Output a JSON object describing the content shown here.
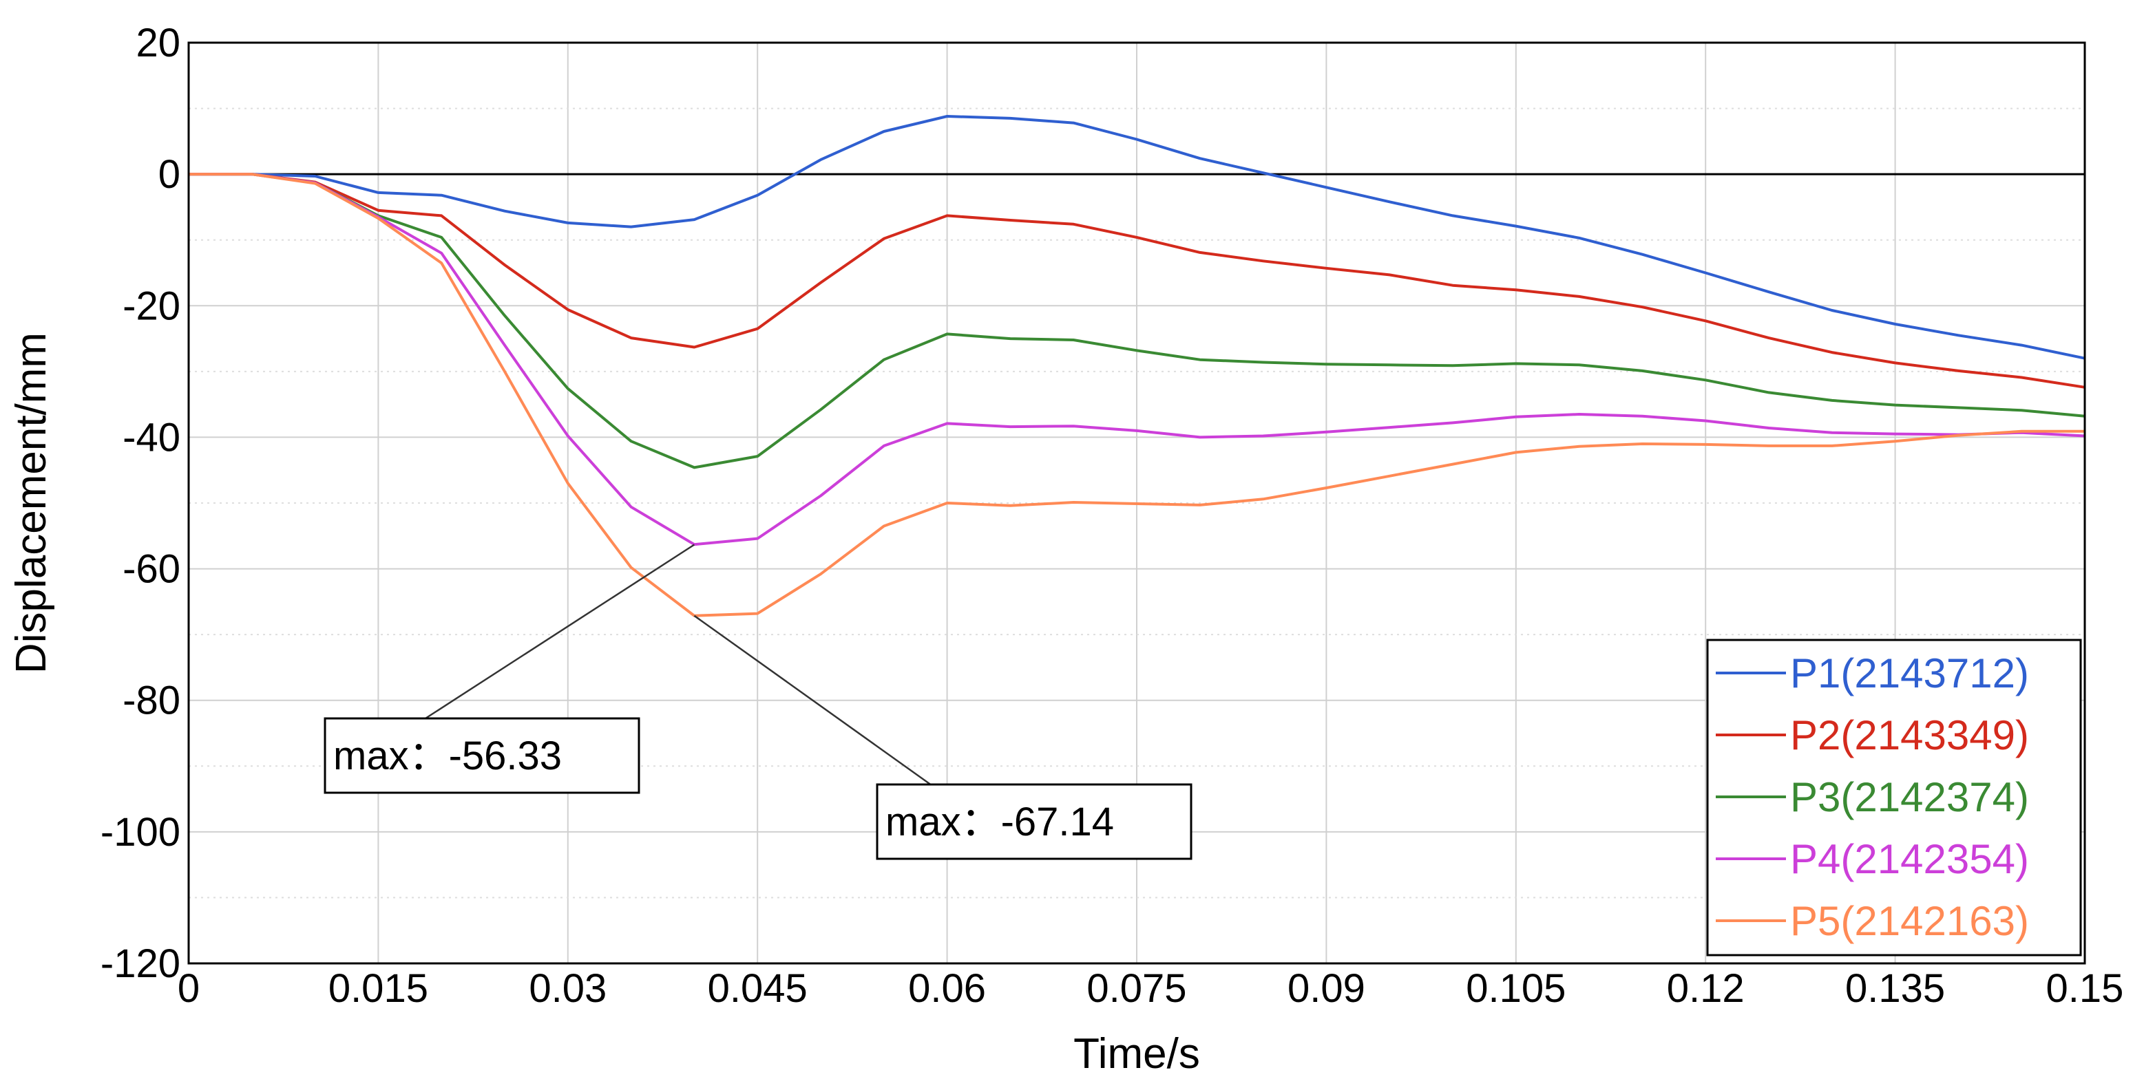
{
  "chart_data": {
    "type": "line",
    "title": "",
    "xlabel": "Time/s",
    "ylabel": "Displacement/mm",
    "xlim": [
      0,
      0.15
    ],
    "ylim": [
      -120,
      20
    ],
    "x_ticks": [
      "0",
      "0.015",
      "0.03",
      "0.045",
      "0.06",
      "0.075",
      "0.09",
      "0.105",
      "0.12",
      "0.135",
      "0.15"
    ],
    "y_ticks": [
      "20",
      "0",
      "-20",
      "-40",
      "-60",
      "-80",
      "-100",
      "-120"
    ],
    "grid": true,
    "legend_position": "bottom-right",
    "x": [
      0,
      0.005,
      0.01,
      0.015,
      0.02,
      0.025,
      0.03,
      0.035,
      0.04,
      0.045,
      0.05,
      0.055,
      0.06,
      0.065,
      0.07,
      0.075,
      0.08,
      0.085,
      0.09,
      0.095,
      0.1,
      0.105,
      0.11,
      0.115,
      0.12,
      0.125,
      0.13,
      0.135,
      0.14,
      0.145,
      0.15
    ],
    "series": [
      {
        "name": "P1(2143712)",
        "color": "#2f5fd0",
        "values": [
          0,
          0,
          -0.3,
          -2.8,
          -3.2,
          -5.6,
          -7.4,
          -8.0,
          -6.9,
          -3.2,
          2.2,
          6.5,
          8.8,
          8.5,
          7.8,
          5.3,
          2.4,
          0.2,
          -2.0,
          -4.2,
          -6.3,
          -7.9,
          -9.7,
          -12.2,
          -15.0,
          -17.9,
          -20.7,
          -22.8,
          -24.5,
          -26.0,
          -28.0
        ]
      },
      {
        "name": "P2(2143349)",
        "color": "#d42a1c",
        "values": [
          0,
          0,
          -1.2,
          -5.5,
          -6.3,
          -13.8,
          -20.6,
          -24.9,
          -26.3,
          -23.5,
          -16.5,
          -9.8,
          -6.3,
          -7.0,
          -7.6,
          -9.6,
          -11.9,
          -13.2,
          -14.3,
          -15.3,
          -16.9,
          -17.6,
          -18.6,
          -20.2,
          -22.3,
          -24.9,
          -27.1,
          -28.7,
          -29.9,
          -30.9,
          -32.4
        ]
      },
      {
        "name": "P3(2142374)",
        "color": "#3a8a33",
        "values": [
          0,
          0,
          -1.3,
          -6.3,
          -9.6,
          -21.5,
          -32.6,
          -40.6,
          -44.6,
          -42.9,
          -35.8,
          -28.2,
          -24.3,
          -25.0,
          -25.2,
          -26.8,
          -28.2,
          -28.6,
          -28.9,
          -29.0,
          -29.1,
          -28.8,
          -29.0,
          -29.9,
          -31.3,
          -33.2,
          -34.4,
          -35.1,
          -35.5,
          -35.9,
          -36.8
        ]
      },
      {
        "name": "P4(2142354)",
        "color": "#cc3fd9",
        "values": [
          0,
          0,
          -1.3,
          -6.5,
          -12.0,
          -26.0,
          -39.8,
          -50.6,
          -56.3,
          -55.4,
          -48.9,
          -41.3,
          -37.9,
          -38.4,
          -38.3,
          -39.0,
          -40.0,
          -39.8,
          -39.2,
          -38.5,
          -37.8,
          -36.9,
          -36.5,
          -36.8,
          -37.5,
          -38.6,
          -39.3,
          -39.5,
          -39.6,
          -39.3,
          -39.8
        ]
      },
      {
        "name": "P5(2142163)",
        "color": "#ff8a55",
        "values": [
          0,
          0,
          -1.4,
          -6.7,
          -13.5,
          -30.0,
          -47.0,
          -59.8,
          -67.14,
          -66.8,
          -60.8,
          -53.5,
          -50.0,
          -50.4,
          -49.9,
          -50.1,
          -50.3,
          -49.4,
          -47.7,
          -45.9,
          -44.1,
          -42.3,
          -41.4,
          -41.0,
          -41.1,
          -41.3,
          -41.3,
          -40.6,
          -39.7,
          -39.1,
          -39.1
        ]
      }
    ],
    "annotations": [
      {
        "text": "max：-56.33",
        "series": "P4(2142354)",
        "x": 0.04,
        "y": -56.33
      },
      {
        "text": "max：-67.14",
        "series": "P5(2142163)",
        "x": 0.04,
        "y": -67.14
      }
    ]
  }
}
